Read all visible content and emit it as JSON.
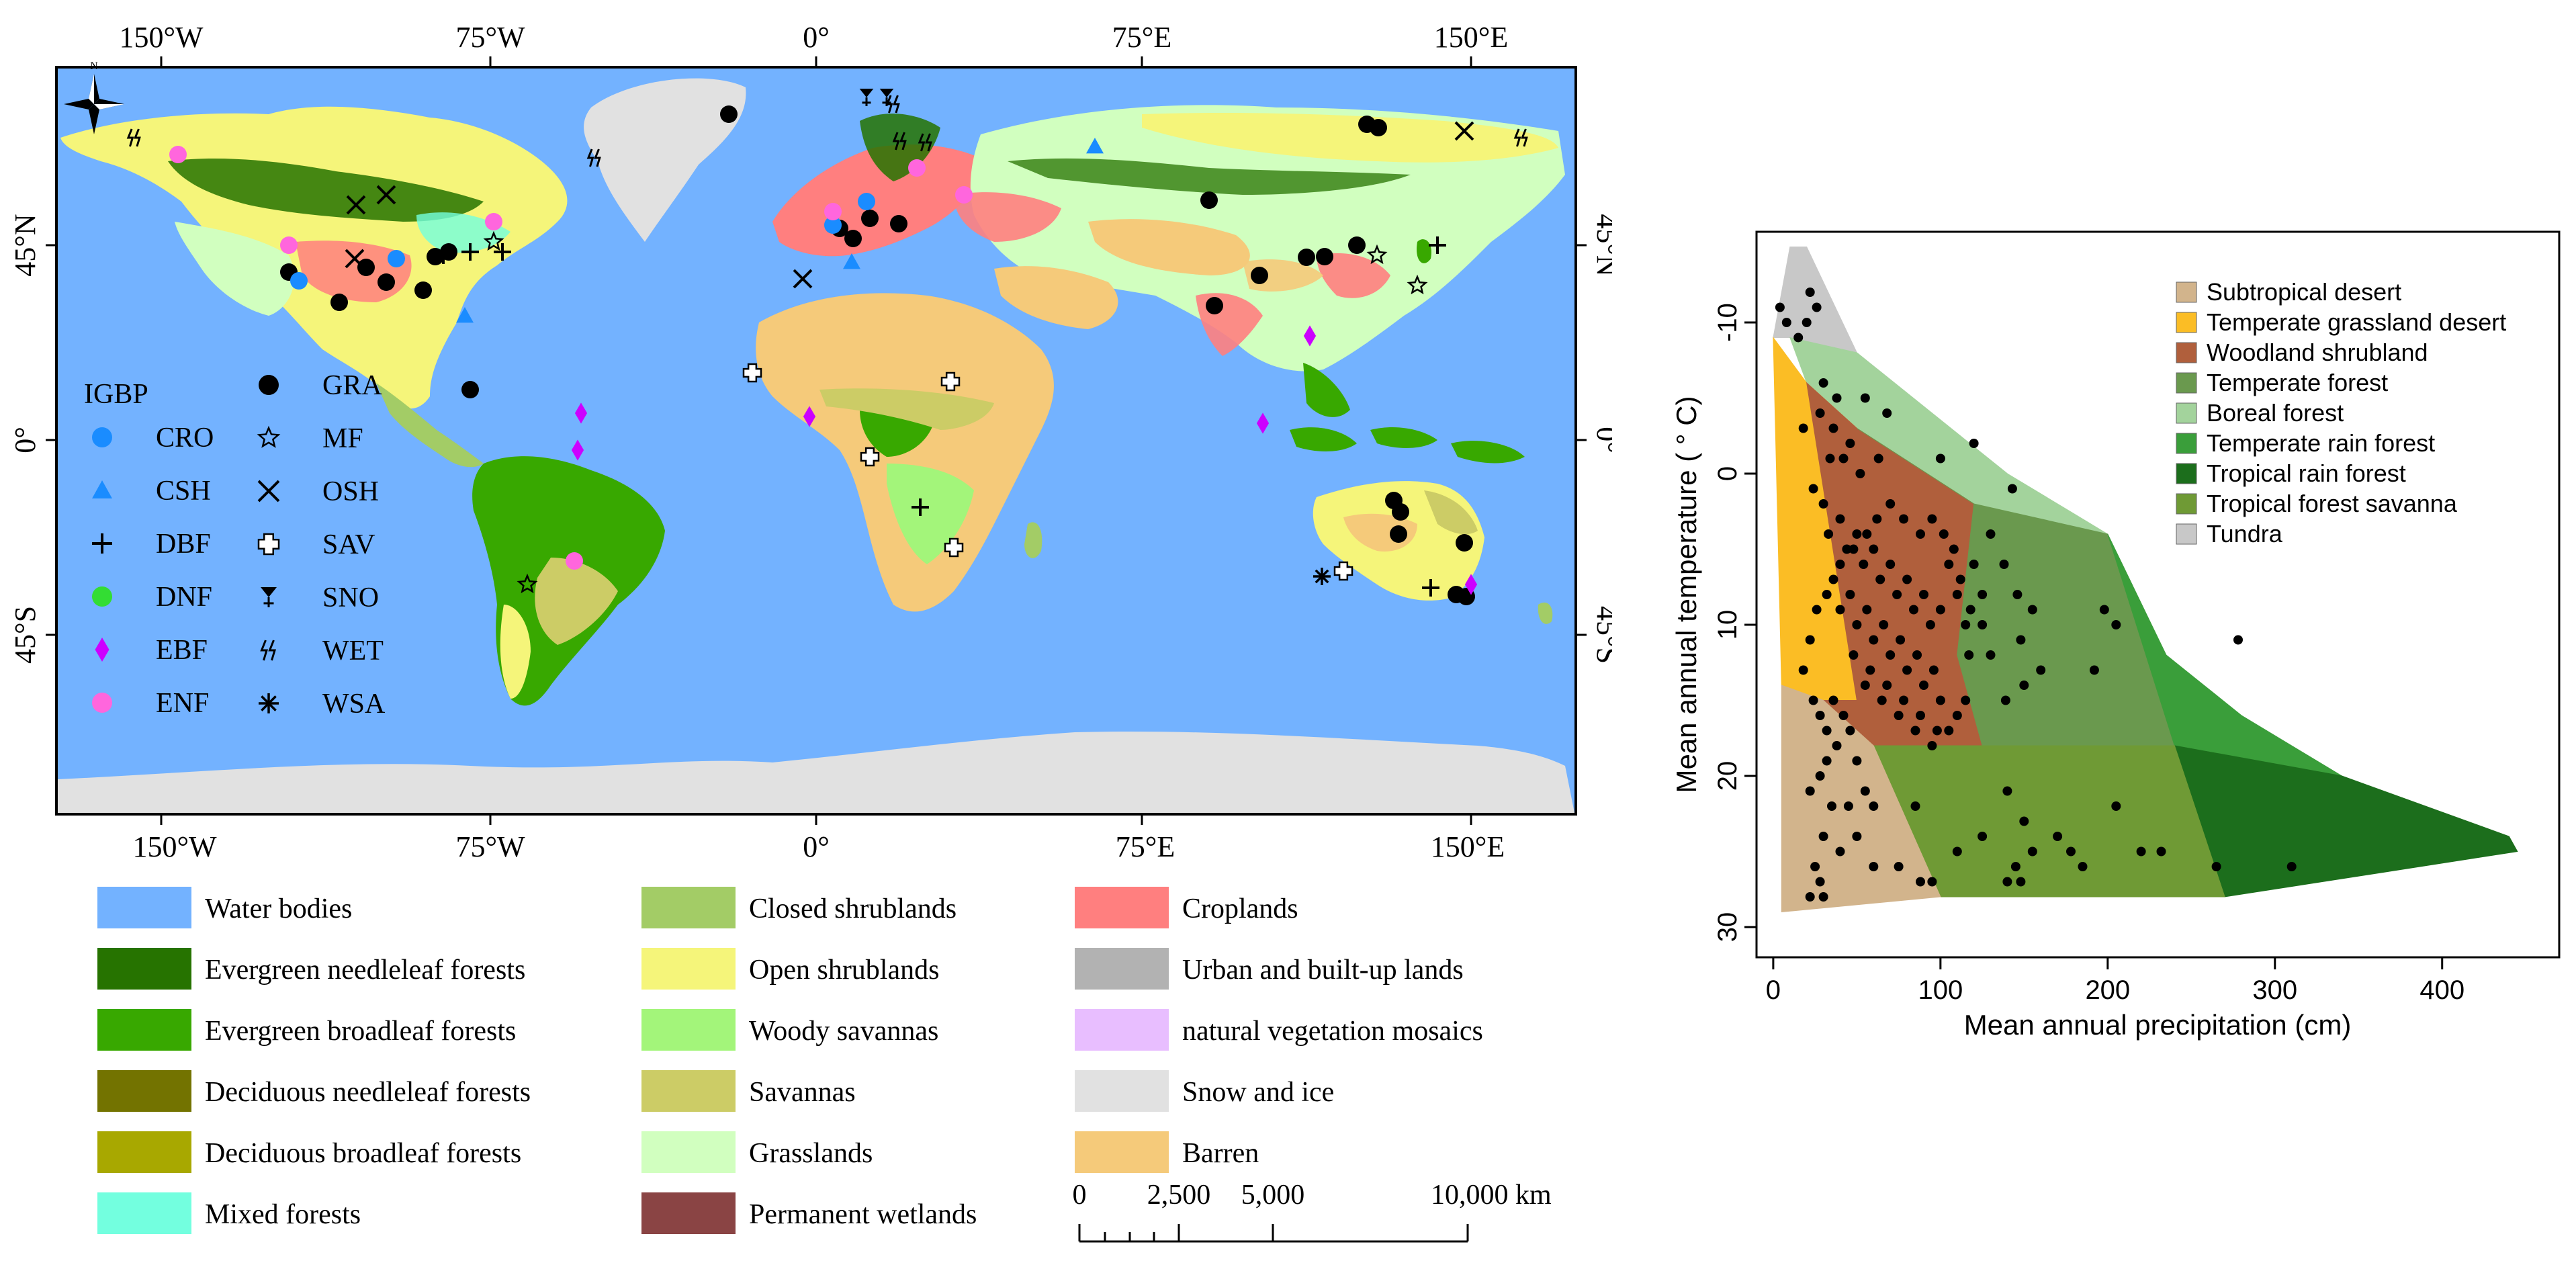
{
  "map": {
    "top_lon_ticks": [
      "150°W",
      "75°W",
      "0°",
      "75°E",
      "150°E"
    ],
    "bottom_lon_ticks": [
      "150°W",
      "75°W",
      "0°",
      "75°E",
      "150°E"
    ],
    "lat_ticks": [
      "45°N",
      "0°",
      "45°S"
    ],
    "igbp_legend": {
      "title": "IGBP",
      "items": [
        {
          "code": "CRO",
          "symbol": "circle",
          "color": "#1a8cff"
        },
        {
          "code": "CSH",
          "symbol": "triangle",
          "color": "#1a8cff"
        },
        {
          "code": "DBF",
          "symbol": "plus",
          "color": "#000000"
        },
        {
          "code": "DNF",
          "symbol": "circle",
          "color": "#33dd33"
        },
        {
          "code": "EBF",
          "symbol": "diamond",
          "color": "#cc00ff"
        },
        {
          "code": "ENF",
          "symbol": "circle",
          "color": "#ff66dd"
        },
        {
          "code": "GRA",
          "symbol": "circle",
          "color": "#000000"
        },
        {
          "code": "MF",
          "symbol": "star",
          "color": "#000000"
        },
        {
          "code": "OSH",
          "symbol": "cross",
          "color": "#000000"
        },
        {
          "code": "SAV",
          "symbol": "open-cross",
          "color": "#000000"
        },
        {
          "code": "SNO",
          "symbol": "snow",
          "color": "#000000"
        },
        {
          "code": "WET",
          "symbol": "wet",
          "color": "#000000"
        },
        {
          "code": "WSA",
          "symbol": "asterisk",
          "color": "#000000"
        }
      ]
    },
    "landcover_legend": [
      {
        "label": "Water bodies",
        "color": "#73b2ff"
      },
      {
        "label": "Evergreen needleleaf forests",
        "color": "#267300"
      },
      {
        "label": "Evergreen broadleaf forests",
        "color": "#38a800"
      },
      {
        "label": "Deciduous needleleaf forests",
        "color": "#737300"
      },
      {
        "label": "Deciduous broadleaf forests",
        "color": "#a8a800"
      },
      {
        "label": "Mixed forests",
        "color": "#73ffdf"
      },
      {
        "label": "Closed shrublands",
        "color": "#a3cc66"
      },
      {
        "label": "Open shrublands",
        "color": "#f5f57a"
      },
      {
        "label": "Woody savannas",
        "color": "#a3f57a"
      },
      {
        "label": "Savannas",
        "color": "#cccc66"
      },
      {
        "label": "Grasslands",
        "color": "#d1ffbf"
      },
      {
        "label": "Permanent wetlands",
        "color": "#8a4444"
      },
      {
        "label": "Croplands",
        "color": "#ff7f7f"
      },
      {
        "label": "Urban and built-up lands",
        "color": "#b2b2b2"
      },
      {
        "label": "natural vegetation mosaics",
        "color": "#e8beff"
      },
      {
        "label": "Snow and ice",
        "color": "#e1e1e1"
      },
      {
        "label": "Barren",
        "color": "#f5ca7a"
      }
    ],
    "scale_bar": {
      "labels": [
        "0",
        "2,500",
        "5,000",
        "10,000 km"
      ]
    }
  },
  "whittaker": {
    "xlabel": "Mean annual precipitation (cm)",
    "ylabel": "Mean annual temperature ( ° C)",
    "x_ticks": [
      "0",
      "100",
      "200",
      "300",
      "400"
    ],
    "y_ticks": [
      "-10",
      "0",
      "10",
      "20",
      "30"
    ],
    "legend": [
      {
        "label": "Subtropical desert",
        "color": "#d2b48c"
      },
      {
        "label": "Temperate grassland desert",
        "color": "#fbbd25"
      },
      {
        "label": "Woodland shrubland",
        "color": "#b05f3c"
      },
      {
        "label": "Temperate forest",
        "color": "#6a994e"
      },
      {
        "label": "Boreal forest",
        "color": "#a3d39c"
      },
      {
        "label": "Temperate rain forest",
        "color": "#3a9e3a"
      },
      {
        "label": "Tropical rain forest",
        "color": "#1c6e1c"
      },
      {
        "label": "Tropical forest savanna",
        "color": "#6f9a35"
      },
      {
        "label": "Tundra",
        "color": "#c8c8c8"
      }
    ]
  },
  "chart_data": {
    "type": "scatter",
    "xlim": [
      -10,
      470
    ],
    "ylim": [
      -16,
      32
    ],
    "y_reversed": true,
    "biomes": [
      {
        "name": "Tundra",
        "polygon": [
          [
            0,
            -9
          ],
          [
            10,
            -15
          ],
          [
            20,
            -15
          ],
          [
            50,
            -8
          ],
          [
            140,
            0
          ],
          [
            10,
            -9
          ]
        ]
      },
      {
        "name": "Boreal forest",
        "polygon": [
          [
            10,
            -9
          ],
          [
            50,
            -8
          ],
          [
            140,
            0
          ],
          [
            200,
            4
          ],
          [
            120,
            2
          ],
          [
            50,
            -3
          ],
          [
            20,
            -6
          ]
        ]
      },
      {
        "name": "Temperate grassland desert",
        "polygon": [
          [
            0,
            -9
          ],
          [
            20,
            -6
          ],
          [
            50,
            -3
          ],
          [
            50,
            15
          ],
          [
            30,
            15
          ],
          [
            5,
            14
          ]
        ]
      },
      {
        "name": "Woodland shrubland",
        "polygon": [
          [
            20,
            -6
          ],
          [
            50,
            -3
          ],
          [
            120,
            2
          ],
          [
            110,
            12
          ],
          [
            125,
            18
          ],
          [
            60,
            18
          ],
          [
            30,
            15
          ],
          [
            50,
            15
          ]
        ]
      },
      {
        "name": "Temperate forest",
        "polygon": [
          [
            50,
            -3
          ],
          [
            120,
            2
          ],
          [
            200,
            4
          ],
          [
            240,
            18
          ],
          [
            125,
            18
          ],
          [
            110,
            12
          ],
          [
            120,
            2
          ]
        ]
      },
      {
        "name": "Temperate rain forest",
        "polygon": [
          [
            200,
            4
          ],
          [
            235,
            12
          ],
          [
            280,
            16
          ],
          [
            340,
            20
          ],
          [
            240,
            18
          ]
        ]
      },
      {
        "name": "Tropical rain forest",
        "polygon": [
          [
            240,
            18
          ],
          [
            340,
            20
          ],
          [
            440,
            24
          ],
          [
            445,
            25
          ],
          [
            270,
            28
          ]
        ]
      },
      {
        "name": "Tropical forest savanna",
        "polygon": [
          [
            60,
            18
          ],
          [
            240,
            18
          ],
          [
            270,
            28
          ],
          [
            100,
            28
          ]
        ]
      },
      {
        "name": "Subtropical desert",
        "polygon": [
          [
            5,
            14
          ],
          [
            30,
            15
          ],
          [
            60,
            18
          ],
          [
            100,
            28
          ],
          [
            5,
            29
          ]
        ]
      }
    ],
    "points": [
      [
        4,
        -11
      ],
      [
        8,
        -10
      ],
      [
        15,
        -9
      ],
      [
        20,
        -10
      ],
      [
        22,
        -12
      ],
      [
        26,
        -11
      ],
      [
        30,
        -6
      ],
      [
        38,
        -5
      ],
      [
        55,
        -5
      ],
      [
        68,
        -4
      ],
      [
        100,
        -1
      ],
      [
        120,
        -2
      ],
      [
        143,
        1
      ],
      [
        52,
        0
      ],
      [
        63,
        -1
      ],
      [
        18,
        -3
      ],
      [
        28,
        -4
      ],
      [
        36,
        -3
      ],
      [
        46,
        -2
      ],
      [
        42,
        -1
      ],
      [
        34,
        -1
      ],
      [
        24,
        1
      ],
      [
        30,
        2
      ],
      [
        40,
        3
      ],
      [
        50,
        4
      ],
      [
        60,
        5
      ],
      [
        70,
        6
      ],
      [
        80,
        7
      ],
      [
        90,
        8
      ],
      [
        100,
        9
      ],
      [
        33,
        4
      ],
      [
        44,
        5
      ],
      [
        54,
        6
      ],
      [
        64,
        7
      ],
      [
        74,
        8
      ],
      [
        84,
        9
      ],
      [
        94,
        10
      ],
      [
        36,
        7
      ],
      [
        46,
        8
      ],
      [
        56,
        9
      ],
      [
        66,
        10
      ],
      [
        76,
        11
      ],
      [
        86,
        12
      ],
      [
        96,
        13
      ],
      [
        40,
        9
      ],
      [
        50,
        10
      ],
      [
        60,
        11
      ],
      [
        70,
        12
      ],
      [
        80,
        13
      ],
      [
        90,
        14
      ],
      [
        100,
        15
      ],
      [
        110,
        16
      ],
      [
        48,
        12
      ],
      [
        58,
        13
      ],
      [
        68,
        14
      ],
      [
        78,
        15
      ],
      [
        88,
        16
      ],
      [
        98,
        17
      ],
      [
        55,
        14
      ],
      [
        65,
        15
      ],
      [
        75,
        16
      ],
      [
        85,
        17
      ],
      [
        95,
        18
      ],
      [
        105,
        17
      ],
      [
        115,
        15
      ],
      [
        130,
        4
      ],
      [
        138,
        6
      ],
      [
        146,
        8
      ],
      [
        155,
        9
      ],
      [
        120,
        6
      ],
      [
        125,
        8
      ],
      [
        148,
        11
      ],
      [
        160,
        13
      ],
      [
        105,
        6
      ],
      [
        110,
        8
      ],
      [
        115,
        10
      ],
      [
        117,
        12
      ],
      [
        130,
        12
      ],
      [
        139,
        15
      ],
      [
        150,
        14
      ],
      [
        108,
        5
      ],
      [
        112,
        7
      ],
      [
        118,
        9
      ],
      [
        125,
        10
      ],
      [
        102,
        4
      ],
      [
        95,
        3
      ],
      [
        88,
        4
      ],
      [
        78,
        3
      ],
      [
        70,
        2
      ],
      [
        62,
        3
      ],
      [
        56,
        4
      ],
      [
        48,
        5
      ],
      [
        40,
        6
      ],
      [
        32,
        8
      ],
      [
        26,
        9
      ],
      [
        22,
        11
      ],
      [
        18,
        13
      ],
      [
        24,
        15
      ],
      [
        28,
        16
      ],
      [
        32,
        17
      ],
      [
        36,
        15
      ],
      [
        42,
        16
      ],
      [
        46,
        17
      ],
      [
        50,
        19
      ],
      [
        38,
        18
      ],
      [
        32,
        19
      ],
      [
        28,
        20
      ],
      [
        22,
        21
      ],
      [
        35,
        22
      ],
      [
        45,
        22
      ],
      [
        50,
        24
      ],
      [
        40,
        25
      ],
      [
        30,
        24
      ],
      [
        25,
        26
      ],
      [
        28,
        27
      ],
      [
        22,
        28
      ],
      [
        30,
        28
      ],
      [
        55,
        21
      ],
      [
        60,
        22
      ],
      [
        85,
        22
      ],
      [
        110,
        25
      ],
      [
        125,
        24
      ],
      [
        140,
        21
      ],
      [
        150,
        23
      ],
      [
        145,
        26
      ],
      [
        155,
        25
      ],
      [
        170,
        24
      ],
      [
        178,
        25
      ],
      [
        185,
        26
      ],
      [
        205,
        22
      ],
      [
        220,
        25
      ],
      [
        232,
        25
      ],
      [
        265,
        26
      ],
      [
        310,
        26
      ],
      [
        278,
        11
      ],
      [
        205,
        10
      ],
      [
        192,
        13
      ],
      [
        198,
        9
      ],
      [
        140,
        27
      ],
      [
        148,
        27
      ],
      [
        95,
        27
      ],
      [
        88,
        27
      ],
      [
        60,
        26
      ],
      [
        75,
        26
      ]
    ]
  }
}
